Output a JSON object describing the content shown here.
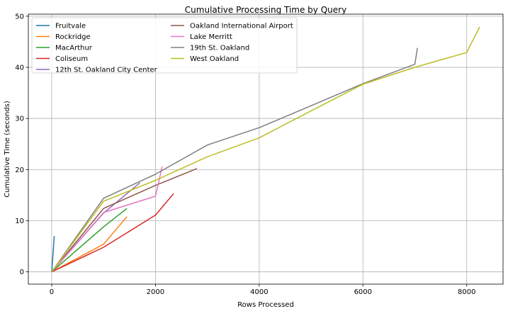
{
  "chart_data": {
    "type": "line",
    "title": "Cumulative Processing Time by Query",
    "xlabel": "Rows Processed",
    "ylabel": "Cumulative Time (seconds)",
    "xlim": [
      -450,
      8700
    ],
    "ylim": [
      -2.4,
      50.4
    ],
    "xticks": [
      0,
      2000,
      4000,
      6000,
      8000
    ],
    "xtick_labels": [
      "0",
      "2000",
      "4000",
      "6000",
      "8000"
    ],
    "yticks": [
      0,
      10,
      20,
      30,
      40,
      50
    ],
    "ytick_labels": [
      "0",
      "10",
      "20",
      "30",
      "40",
      "50"
    ],
    "grid": true,
    "legend": {
      "placement": "top-left",
      "columns": 2
    },
    "series": [
      {
        "name": "Fruitvale",
        "color": "#1f77b4",
        "x": [
          0,
          50
        ],
        "y": [
          0,
          7.0
        ]
      },
      {
        "name": "Rockridge",
        "color": "#ff7f0e",
        "x": [
          0,
          1000,
          1450
        ],
        "y": [
          0,
          5.4,
          10.8
        ]
      },
      {
        "name": "MacArthur",
        "color": "#2ca02c",
        "x": [
          0,
          1000,
          1450
        ],
        "y": [
          0,
          8.8,
          12.4
        ]
      },
      {
        "name": "Coliseum",
        "color": "#d62728",
        "x": [
          0,
          1000,
          2000,
          2350
        ],
        "y": [
          0,
          4.8,
          11.1,
          15.3
        ]
      },
      {
        "name": "12th St. Oakland City Center",
        "color": "#9467bd",
        "x": [
          0,
          1000,
          1700
        ],
        "y": [
          0,
          11.5,
          17.4
        ]
      },
      {
        "name": "Oakland International Airport",
        "color": "#8c564b",
        "x": [
          0,
          1000,
          2000,
          2800
        ],
        "y": [
          0,
          12.4,
          16.9,
          20.2
        ]
      },
      {
        "name": "Lake Merritt",
        "color": "#e377c2",
        "x": [
          0,
          1000,
          2000,
          2130
        ],
        "y": [
          0,
          11.6,
          14.8,
          20.6
        ]
      },
      {
        "name": "19th St. Oakland",
        "color": "#7f7f7f",
        "x": [
          0,
          1000,
          2000,
          3000,
          4000,
          5000,
          6000,
          7000,
          7050
        ],
        "y": [
          0,
          14.4,
          19.1,
          24.8,
          28.2,
          32.5,
          36.8,
          40.6,
          43.8
        ]
      },
      {
        "name": "West Oakland",
        "color": "#bcbd22",
        "x": [
          0,
          1000,
          2000,
          3000,
          4000,
          5000,
          6000,
          7000,
          8000,
          8250
        ],
        "y": [
          0,
          13.8,
          17.9,
          22.5,
          26.2,
          31.5,
          36.7,
          40.0,
          42.9,
          47.9
        ]
      }
    ]
  }
}
